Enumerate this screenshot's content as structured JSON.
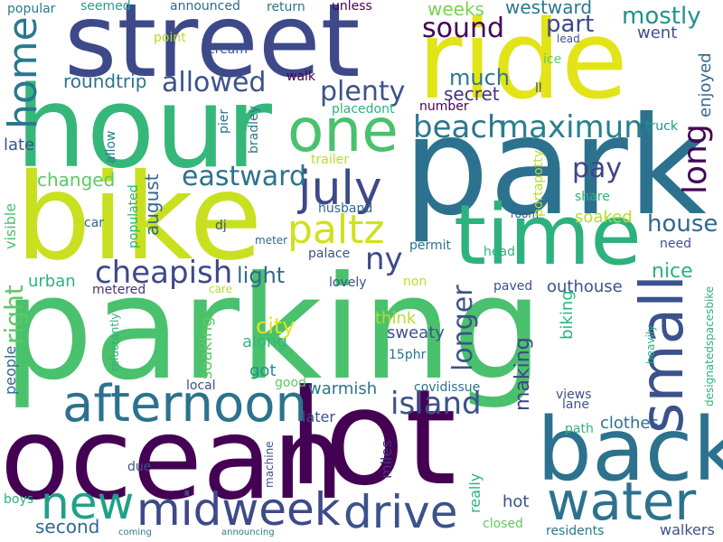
{
  "palette": {
    "dark_purple": "#440154",
    "indigo": "#3b528b",
    "blue": "#2c728e",
    "teal": "#21918c",
    "green": "#35b779",
    "light_green": "#5ec962",
    "lime": "#b5de2b",
    "yellow": "#e3e418"
  },
  "words": [
    {
      "text": "parking",
      "color": "#4ac16d"
    },
    {
      "text": "park",
      "color": "#2c728e"
    },
    {
      "text": "hour",
      "color": "#35b779"
    },
    {
      "text": "bike",
      "color": "#c8e020"
    },
    {
      "text": "lot",
      "color": "#440154"
    },
    {
      "text": "ocean",
      "color": "#440154"
    },
    {
      "text": "street",
      "color": "#3e4989"
    },
    {
      "text": "ride",
      "color": "#e3e418"
    },
    {
      "text": "back",
      "color": "#2c728e"
    },
    {
      "text": "time",
      "color": "#2db27d"
    },
    {
      "text": "water",
      "color": "#2c728e"
    },
    {
      "text": "small",
      "color": "#3b528b"
    },
    {
      "text": "one",
      "color": "#4ac16d"
    },
    {
      "text": "afternoon",
      "color": "#2c728e"
    },
    {
      "text": "midweek",
      "color": "#3e4989"
    },
    {
      "text": "drive",
      "color": "#3b528b"
    },
    {
      "text": "new",
      "color": "#1fa187"
    },
    {
      "text": "july",
      "color": "#3e4989"
    },
    {
      "text": "home",
      "color": "#2a788e"
    },
    {
      "text": "paltz",
      "color": "#d0e11c"
    },
    {
      "text": "beach",
      "color": "#2a788e"
    },
    {
      "text": "maximum",
      "color": "#277f8e"
    },
    {
      "text": "island",
      "color": "#3b528b"
    },
    {
      "text": "cheapish",
      "color": "#3e4989"
    },
    {
      "text": "plenty",
      "color": "#3b528b"
    },
    {
      "text": "allowed",
      "color": "#3b528b"
    },
    {
      "text": "eastward",
      "color": "#2c728e"
    },
    {
      "text": "pay",
      "color": "#414487"
    },
    {
      "text": "long",
      "color": "#440154"
    },
    {
      "text": "sound",
      "color": "#440154"
    },
    {
      "text": "mostly",
      "color": "#21918c"
    },
    {
      "text": "part",
      "color": "#3e4989"
    },
    {
      "text": "house",
      "color": "#31688e"
    },
    {
      "text": "ny",
      "color": "#3e4989"
    },
    {
      "text": "longer",
      "color": "#3b528b"
    },
    {
      "text": "right",
      "color": "#5ec962"
    },
    {
      "text": "city",
      "color": "#e3e418"
    },
    {
      "text": "making",
      "color": "#414487"
    },
    {
      "text": "light",
      "color": "#31688e"
    },
    {
      "text": "much",
      "color": "#2a788e"
    },
    {
      "text": "roundtrip",
      "color": "#2c728e"
    },
    {
      "text": "changed",
      "color": "#5ec962"
    },
    {
      "text": "august",
      "color": "#31688e"
    },
    {
      "text": "secret",
      "color": "#46327e"
    },
    {
      "text": "weeks",
      "color": "#7ad151"
    },
    {
      "text": "westward",
      "color": "#2a788e"
    },
    {
      "text": "went",
      "color": "#3b528b"
    },
    {
      "text": "enjoyed",
      "color": "#31688e"
    },
    {
      "text": "soaked",
      "color": "#b5de2b"
    },
    {
      "text": "outhouse",
      "color": "#3b528b"
    },
    {
      "text": "nice",
      "color": "#2db27d"
    },
    {
      "text": "think",
      "color": "#b5de2b"
    },
    {
      "text": "sweaty",
      "color": "#3b528b"
    },
    {
      "text": "along",
      "color": "#35b779"
    },
    {
      "text": "got",
      "color": "#21918c"
    },
    {
      "text": "soaking",
      "color": "#5ec962"
    },
    {
      "text": "warmish",
      "color": "#2c728e"
    },
    {
      "text": "later",
      "color": "#3b528b"
    },
    {
      "text": "clothes",
      "color": "#2c728e"
    },
    {
      "text": "biking",
      "color": "#2db27d"
    },
    {
      "text": "urban",
      "color": "#2db27d"
    },
    {
      "text": "late",
      "color": "#3b528b"
    },
    {
      "text": "visible",
      "color": "#4ac16d"
    },
    {
      "text": "people",
      "color": "#31688e"
    },
    {
      "text": "second",
      "color": "#31688e"
    },
    {
      "text": "hot",
      "color": "#3b528b"
    },
    {
      "text": "really",
      "color": "#2db27d"
    },
    {
      "text": "miles",
      "color": "#46327e"
    },
    {
      "text": "closed",
      "color": "#5ec962"
    },
    {
      "text": "residents",
      "color": "#2a788e"
    },
    {
      "text": "walkers",
      "color": "#3b528b"
    },
    {
      "text": "popular",
      "color": "#2a788e"
    },
    {
      "text": "seemed",
      "color": "#1fa187"
    },
    {
      "text": "announced",
      "color": "#31688e"
    },
    {
      "text": "return",
      "color": "#2c728e"
    },
    {
      "text": "unless",
      "color": "#440154"
    },
    {
      "text": "point",
      "color": "#b5de2b"
    },
    {
      "text": "cream",
      "color": "#3b528b"
    },
    {
      "text": "ice",
      "color": "#5ec962"
    },
    {
      "text": "lead",
      "color": "#3b528b"
    },
    {
      "text": "walk",
      "color": "#440154"
    },
    {
      "text": "number",
      "color": "#440154"
    },
    {
      "text": "ll",
      "color": "#3e4989"
    },
    {
      "text": "placedont",
      "color": "#2db27d"
    },
    {
      "text": "pier",
      "color": "#2c728e"
    },
    {
      "text": "bradley",
      "color": "#2a788e"
    },
    {
      "text": "allow",
      "color": "#2a788e"
    },
    {
      "text": "trailer",
      "color": "#b5de2b"
    },
    {
      "text": "husband",
      "color": "#31688e"
    },
    {
      "text": "portapotty",
      "color": "#b5de2b"
    },
    {
      "text": "share",
      "color": "#2db27d"
    },
    {
      "text": "truck",
      "color": "#21918c"
    },
    {
      "text": "car",
      "color": "#31688e"
    },
    {
      "text": "room",
      "color": "#3b528b"
    },
    {
      "text": "populated",
      "color": "#2db27d"
    },
    {
      "text": "dj",
      "color": "#3b528b"
    },
    {
      "text": "meter",
      "color": "#31688e"
    },
    {
      "text": "head",
      "color": "#2db27d"
    },
    {
      "text": "need",
      "color": "#3b528b"
    },
    {
      "text": "permit",
      "color": "#2c728e"
    },
    {
      "text": "palace",
      "color": "#3b528b"
    },
    {
      "text": "designatedspacesbike",
      "color": "#2db27d"
    },
    {
      "text": "metered",
      "color": "#46327e"
    },
    {
      "text": "care",
      "color": "#b5de2b"
    },
    {
      "text": "reluctantly",
      "color": "#2db27d"
    },
    {
      "text": "lovely",
      "color": "#3b528b"
    },
    {
      "text": "non",
      "color": "#b5de2b"
    },
    {
      "text": "paved",
      "color": "#3b528b"
    },
    {
      "text": "heavily",
      "color": "#2db27d"
    },
    {
      "text": "15phr",
      "color": "#2c728e"
    },
    {
      "text": "good",
      "color": "#5ec962"
    },
    {
      "text": "local",
      "color": "#3b528b"
    },
    {
      "text": "covidissue",
      "color": "#2c728e"
    },
    {
      "text": "views",
      "color": "#3b528b"
    },
    {
      "text": "lane",
      "color": "#3b528b"
    },
    {
      "text": "machine",
      "color": "#3b528b"
    },
    {
      "text": "due",
      "color": "#3b528b"
    },
    {
      "text": "path",
      "color": "#2db27d"
    },
    {
      "text": "boys",
      "color": "#2db27d"
    },
    {
      "text": "coming",
      "color": "#2a788e"
    },
    {
      "text": "announcing",
      "color": "#2a788e"
    }
  ]
}
